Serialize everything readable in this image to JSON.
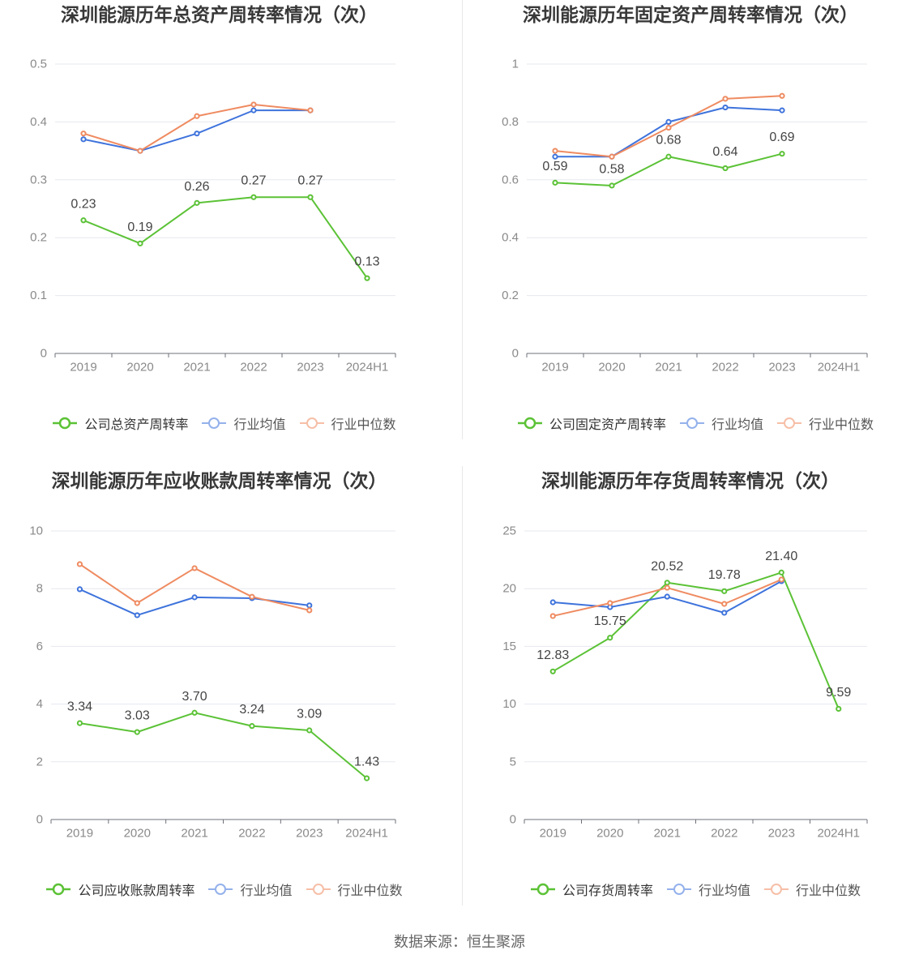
{
  "footer": {
    "source": "数据来源：恒生聚源"
  },
  "colors": {
    "company": "#5bc236",
    "mean": "#3e73dc",
    "median": "#ef8b61"
  },
  "chart_data": [
    {
      "type": "line",
      "title": "深圳能源历年总资产周转率情况（次）",
      "categories": [
        "2019",
        "2020",
        "2021",
        "2022",
        "2023",
        "2024H1"
      ],
      "ylim": [
        0,
        0.5
      ],
      "yticks": [
        0,
        0.1,
        0.2,
        0.3,
        0.4,
        0.5
      ],
      "grid": true,
      "legend": "bottom",
      "series": [
        {
          "name": "公司总资产周转率",
          "values": [
            0.23,
            0.19,
            0.26,
            0.27,
            0.27,
            0.13
          ],
          "show_data_labels": true
        },
        {
          "name": "行业均值",
          "values": [
            0.37,
            0.35,
            0.38,
            0.42,
            0.42,
            null
          ]
        },
        {
          "name": "行业中位数",
          "values": [
            0.38,
            0.35,
            0.41,
            0.43,
            0.42,
            null
          ]
        }
      ]
    },
    {
      "type": "line",
      "title": "深圳能源历年固定资产周转率情况（次）",
      "categories": [
        "2019",
        "2020",
        "2021",
        "2022",
        "2023",
        "2024H1"
      ],
      "ylim": [
        0,
        1
      ],
      "yticks": [
        0,
        0.2,
        0.4,
        0.6,
        0.8,
        1
      ],
      "grid": true,
      "legend": "bottom",
      "series": [
        {
          "name": "公司固定资产周转率",
          "values": [
            0.59,
            0.58,
            0.68,
            0.64,
            0.69,
            null
          ],
          "show_data_labels": true
        },
        {
          "name": "行业均值",
          "values": [
            0.68,
            0.68,
            0.8,
            0.85,
            0.84,
            null
          ]
        },
        {
          "name": "行业中位数",
          "values": [
            0.7,
            0.68,
            0.78,
            0.88,
            0.89,
            null
          ]
        }
      ]
    },
    {
      "type": "line",
      "title": "深圳能源历年应收账款周转率情况（次）",
      "categories": [
        "2019",
        "2020",
        "2021",
        "2022",
        "2023",
        "2024H1"
      ],
      "ylim": [
        0,
        10
      ],
      "yticks": [
        0,
        2,
        4,
        6,
        8,
        10
      ],
      "grid": true,
      "legend": "bottom",
      "series": [
        {
          "name": "公司应收账款周转率",
          "values": [
            3.34,
            3.03,
            3.7,
            3.24,
            3.09,
            1.43
          ],
          "show_data_labels": true
        },
        {
          "name": "行业均值",
          "values": [
            7.98,
            7.08,
            7.7,
            7.67,
            7.42,
            null
          ]
        },
        {
          "name": "行业中位数",
          "values": [
            8.85,
            7.5,
            8.71,
            7.72,
            7.25,
            null
          ]
        }
      ]
    },
    {
      "type": "line",
      "title": "深圳能源历年存货周转率情况（次）",
      "categories": [
        "2019",
        "2020",
        "2021",
        "2022",
        "2023",
        "2024H1"
      ],
      "ylim": [
        0,
        25
      ],
      "yticks": [
        0,
        5,
        10,
        15,
        20,
        25
      ],
      "grid": true,
      "legend": "bottom",
      "series": [
        {
          "name": "公司存货周转率",
          "values": [
            12.83,
            15.75,
            20.52,
            19.78,
            21.4,
            9.59
          ],
          "show_data_labels": true
        },
        {
          "name": "行业均值",
          "values": [
            18.82,
            18.4,
            19.31,
            17.91,
            20.65,
            null
          ]
        },
        {
          "name": "行业中位数",
          "values": [
            17.63,
            18.75,
            20.08,
            18.68,
            20.79,
            null
          ]
        }
      ]
    }
  ]
}
